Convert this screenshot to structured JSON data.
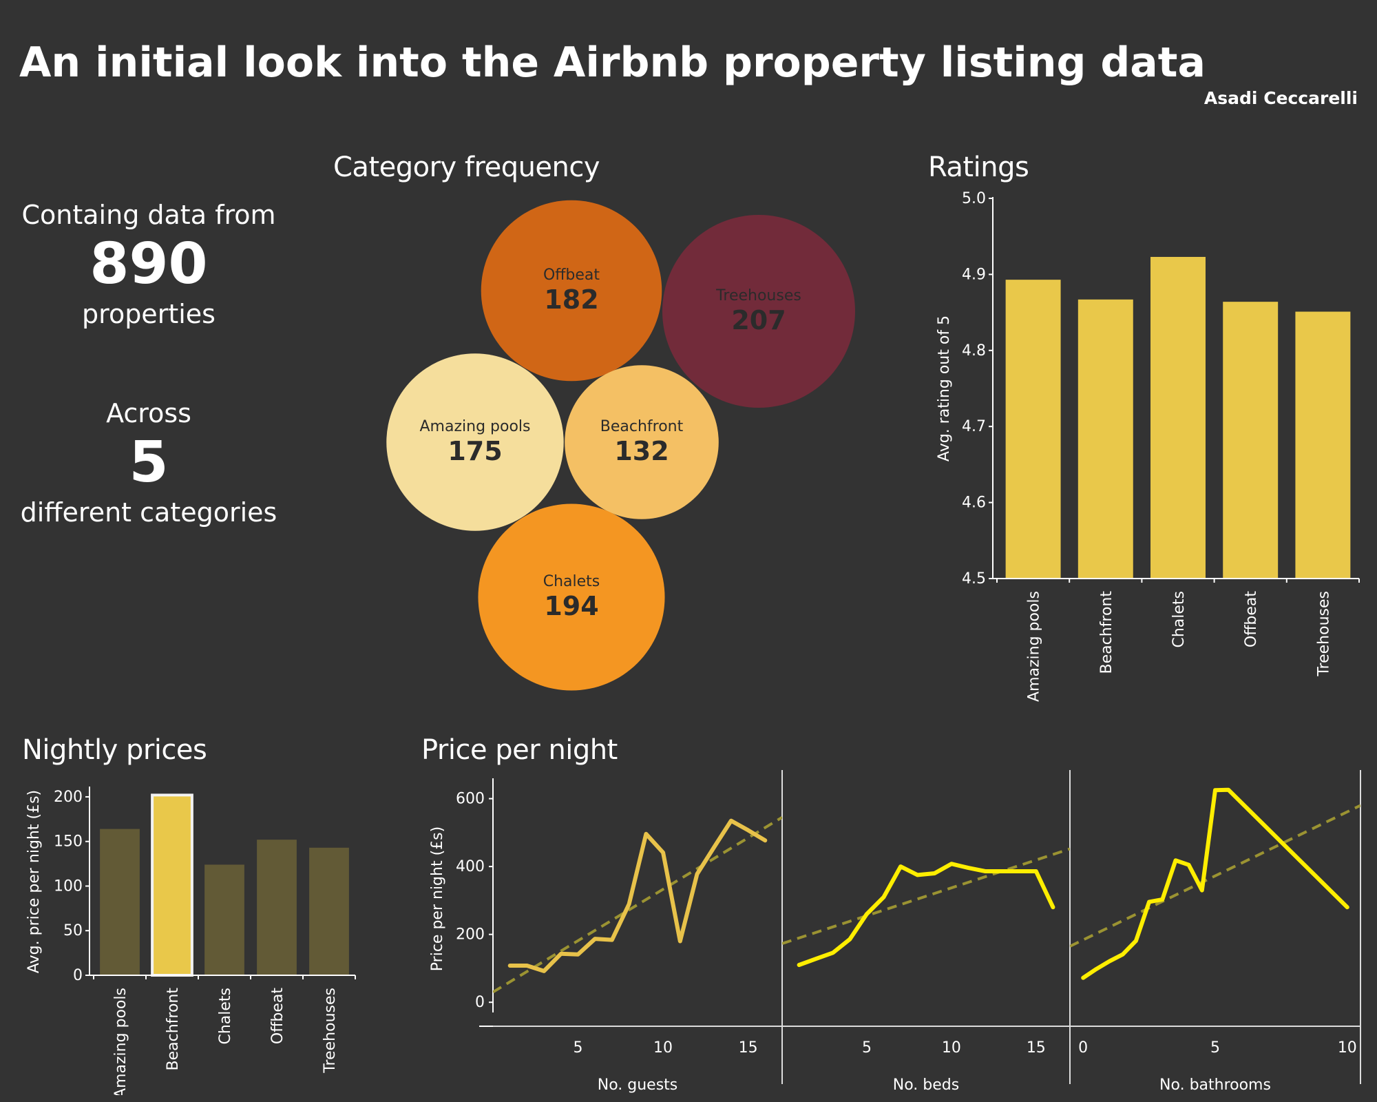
{
  "header": {
    "title": "An initial look into the Airbnb property listing data",
    "author": "Asadi Ceccarelli"
  },
  "kpis": {
    "properties": {
      "pre": "Containg data from",
      "value": "890",
      "post": "properties"
    },
    "categories": {
      "pre": "Across",
      "value": "5",
      "post": "different categories"
    }
  },
  "sections": {
    "category_frequency": "Category frequency",
    "ratings": "Ratings",
    "nightly_prices": "Nightly prices",
    "price_per_night": "Price per night"
  },
  "colors": {
    "background": "#333333",
    "bar_gold": "#e9c84a",
    "bar_dim": "#625a36",
    "line_gold": "#e8c24a",
    "line_yellow": "#ffee00",
    "trend": "#9b9332",
    "bubble_offbeat": "#d06616",
    "bubble_treehouses": "#722b3a",
    "bubble_amazing_pools": "#f5de9c",
    "bubble_beachfront": "#f4c064",
    "bubble_chalets": "#f49622"
  },
  "chart_data": [
    {
      "type": "bubble",
      "title": "Category frequency",
      "categories": [
        "Offbeat",
        "Treehouses",
        "Amazing pools",
        "Beachfront",
        "Chalets"
      ],
      "values": [
        182,
        207,
        175,
        132,
        194
      ]
    },
    {
      "type": "bar",
      "title": "Ratings",
      "categories": [
        "Amazing pools",
        "Beachfront",
        "Chalets",
        "Offbeat",
        "Treehouses"
      ],
      "values": [
        4.893,
        4.867,
        4.923,
        4.864,
        4.851
      ],
      "ylabel": "Avg. rating out of 5",
      "ylim": [
        4.5,
        5.0
      ],
      "yticks": [
        "4.5",
        "4.6",
        "4.7",
        "4.8",
        "4.9",
        "5.0"
      ],
      "grid": false
    },
    {
      "type": "bar",
      "title": "Nightly prices",
      "categories": [
        "Amazing pools",
        "Beachfront",
        "Chalets",
        "Offbeat",
        "Treehouses"
      ],
      "values": [
        164,
        202,
        124,
        152,
        143
      ],
      "highlighted": "Beachfront",
      "ylabel": "Avg. price per night (£s)",
      "ylim": [
        0,
        210
      ],
      "yticks": [
        "0",
        "50",
        "100",
        "150",
        "200"
      ],
      "grid": false
    },
    {
      "type": "line",
      "title": "Price per night",
      "ylabel": "Price per night (£s)",
      "ylim": [
        -30,
        660
      ],
      "yticks": [
        "0",
        "200",
        "400",
        "600"
      ],
      "panels": [
        {
          "xlabel": "No. guests",
          "xlim": [
            0,
            17
          ],
          "xticks": [
            "5",
            "10",
            "15"
          ],
          "x": [
            1,
            2,
            3,
            4,
            5,
            6,
            7,
            8,
            9,
            10,
            11,
            12,
            13,
            14,
            15,
            16
          ],
          "y": [
            108,
            108,
            92,
            143,
            141,
            187,
            184,
            289,
            496,
            441,
            180,
            378,
            457,
            535,
            507,
            477
          ],
          "trend": [
            [
              0,
              30
            ],
            [
              17,
              545
            ]
          ]
        },
        {
          "xlabel": "No. beds",
          "xlim": [
            0,
            17
          ],
          "xticks": [
            "5",
            "10",
            "15"
          ],
          "x": [
            1,
            2,
            3,
            4,
            5,
            6,
            7,
            8,
            9,
            10,
            11,
            12,
            13,
            14,
            15,
            16
          ],
          "y": [
            110,
            128,
            146,
            186,
            260,
            310,
            400,
            375,
            380,
            408,
            396,
            386,
            386,
            386,
            386,
            280
          ],
          "trend": [
            [
              0,
              173
            ],
            [
              17,
              452
            ]
          ]
        },
        {
          "xlabel": "No.  bathrooms",
          "xlim": [
            -0.5,
            10.5
          ],
          "xticks": [
            "0",
            "5",
            "10"
          ],
          "x": [
            0,
            0.5,
            1,
            1.5,
            2,
            2.5,
            3,
            3.5,
            4,
            4.5,
            5,
            5.5,
            10
          ],
          "y": [
            72,
            98,
            121,
            141,
            181,
            296,
            303,
            418,
            405,
            330,
            625,
            626,
            280
          ],
          "trend": [
            [
              -0.5,
              165
            ],
            [
              10.5,
              580
            ]
          ]
        }
      ]
    }
  ]
}
